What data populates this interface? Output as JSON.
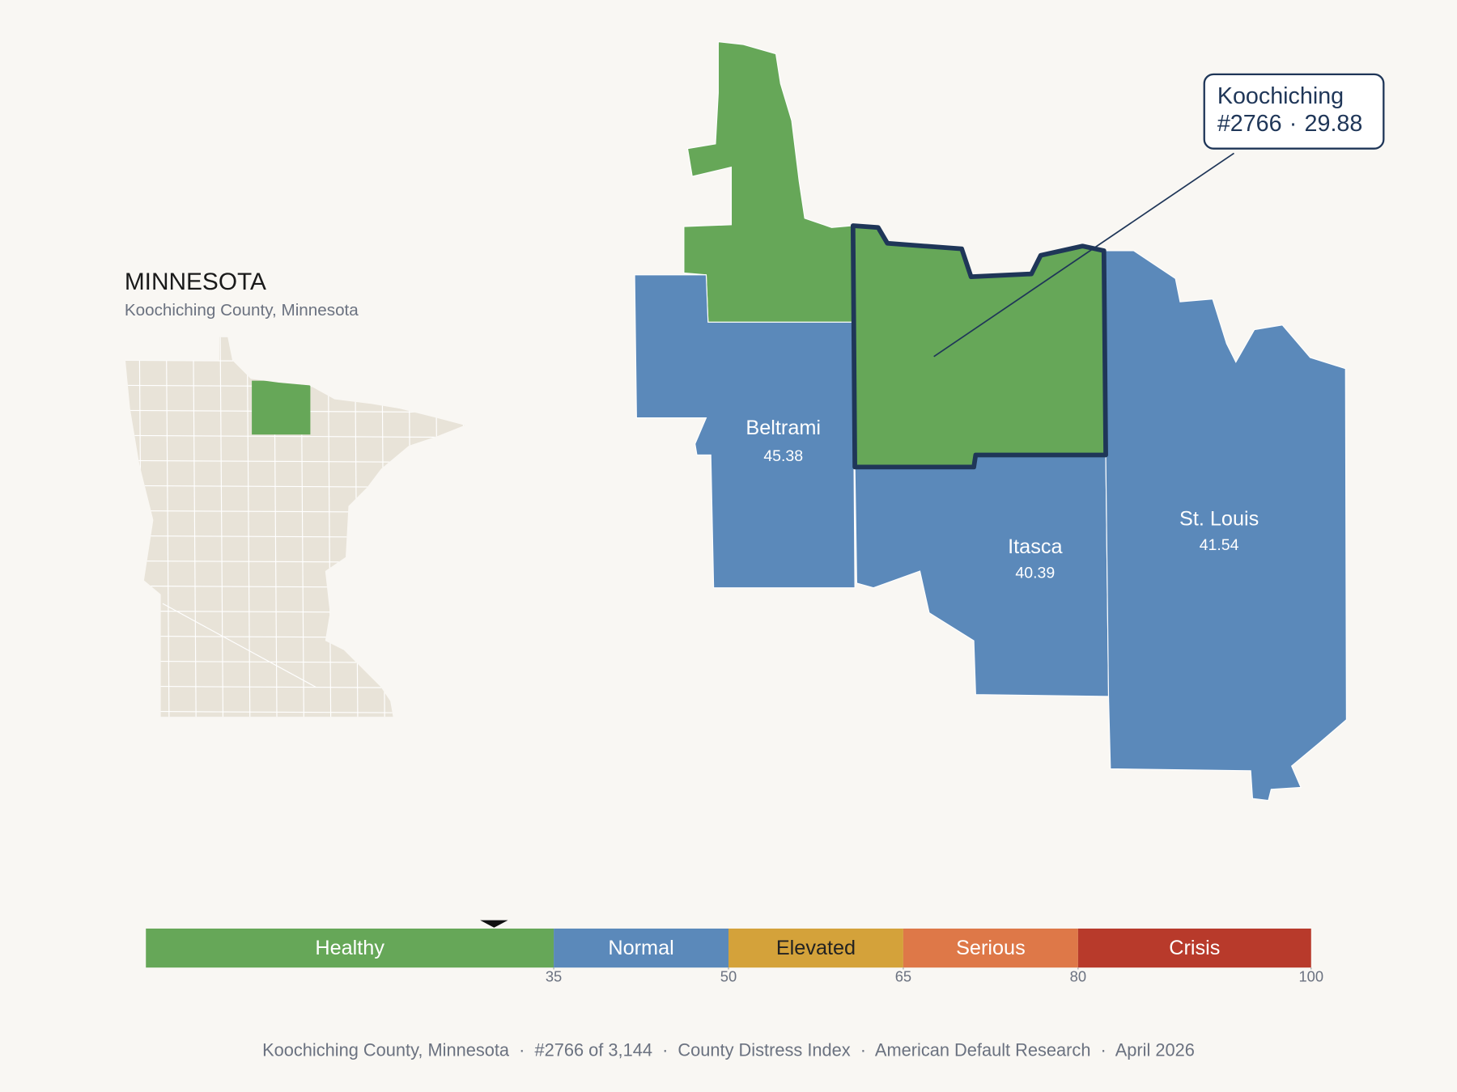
{
  "inset": {
    "title": "MINNESOTA",
    "subtitle": "Koochiching County, Minnesota",
    "fill": "#e8e3d8"
  },
  "map": {
    "highlight": {
      "name": "Koochiching",
      "rank": "#2766",
      "separator": "·",
      "score": 29.88,
      "outline": "#1f3658"
    },
    "counties": [
      {
        "name": "Beltrami",
        "value": 45.38
      },
      {
        "name": "Itasca",
        "value": 40.39
      },
      {
        "name": "St. Louis",
        "value": 41.54
      }
    ]
  },
  "scale": {
    "lim": [
      0,
      100
    ],
    "ticks": [
      35,
      50,
      65,
      80,
      100
    ],
    "bands": [
      {
        "label": "Healthy",
        "color": "#66a758",
        "label_color": "#ffffff"
      },
      {
        "label": "Normal",
        "color": "#5b89ba",
        "label_color": "#ffffff"
      },
      {
        "label": "Elevated",
        "color": "#d4a23a",
        "label_color": "#222222"
      },
      {
        "label": "Serious",
        "color": "#de7848",
        "label_color": "#ffffff"
      },
      {
        "label": "Crisis",
        "color": "#b83a2b",
        "label_color": "#ffffff"
      }
    ]
  },
  "footer": "Koochiching County, Minnesota  ·  #2766 of 3,144  ·  County Distress Index  ·  American Default Research  ·  April 2026"
}
